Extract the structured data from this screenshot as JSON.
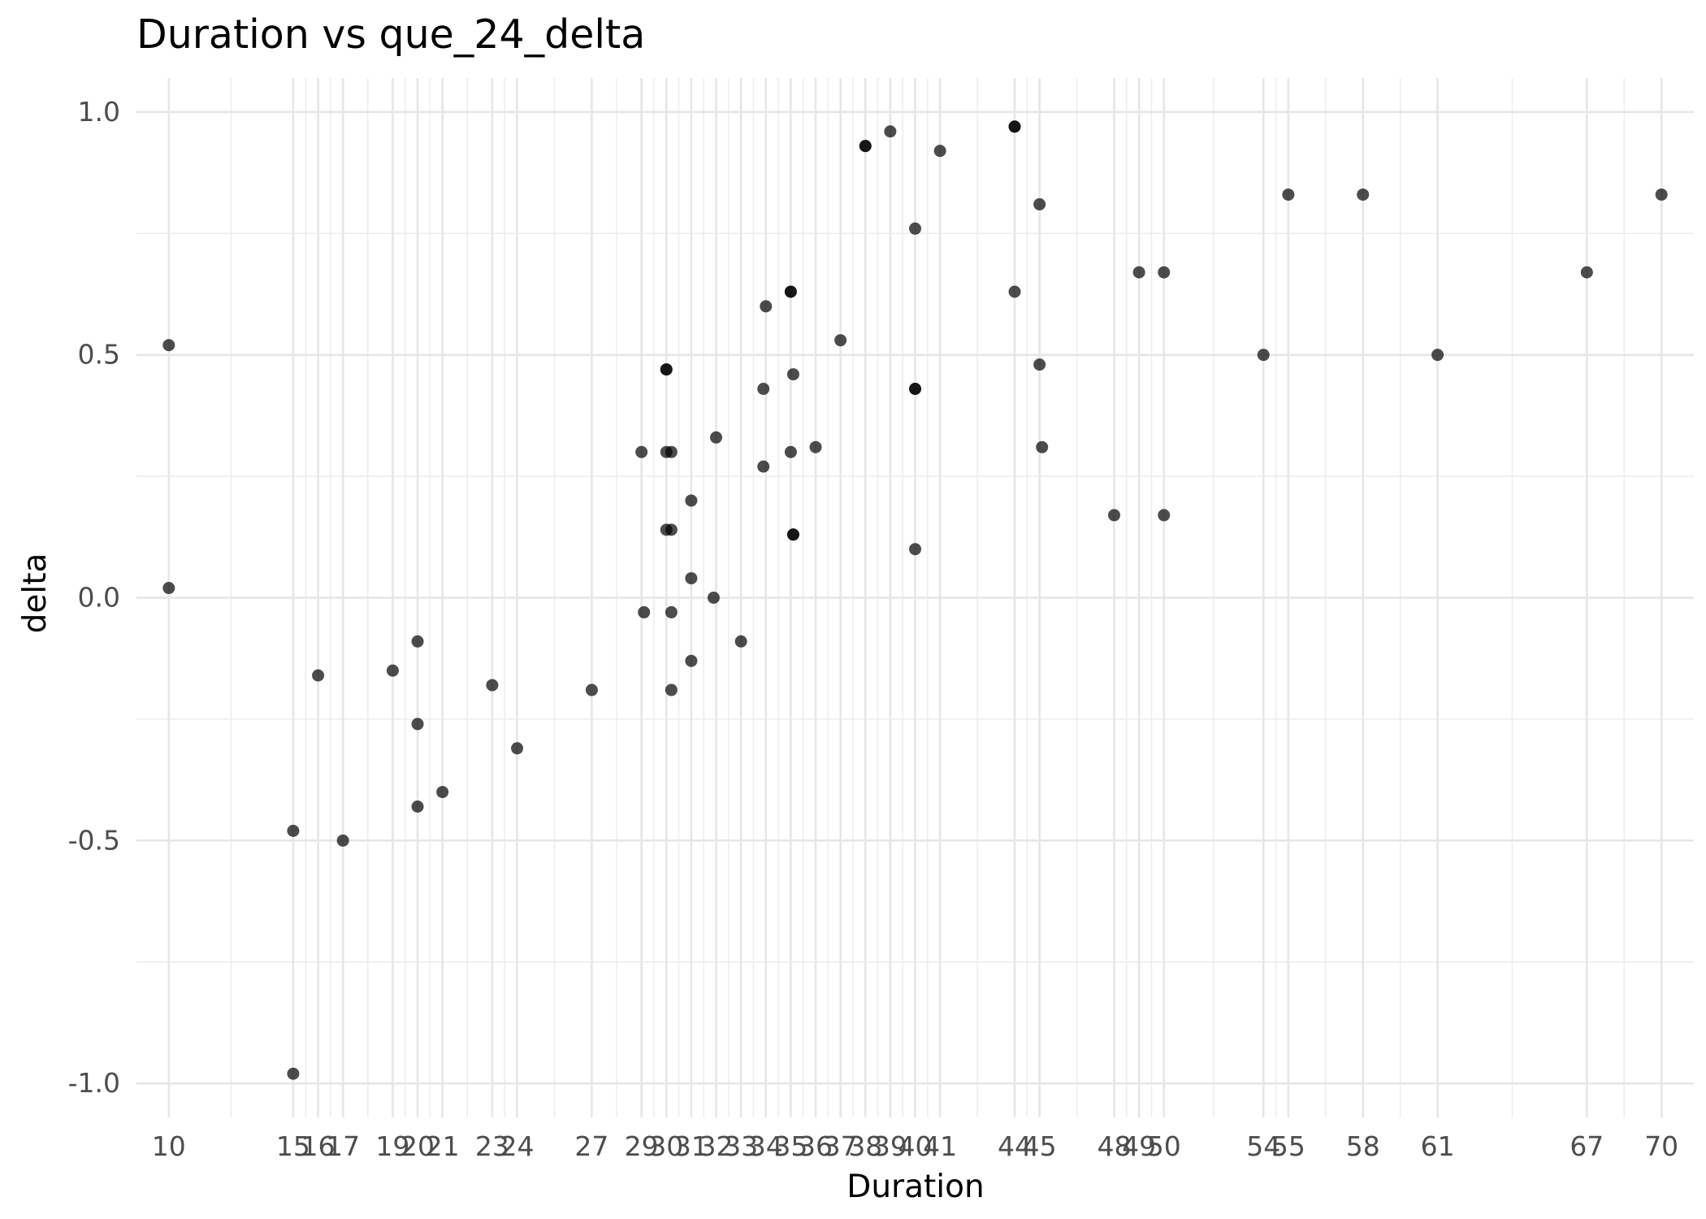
{
  "chart_data": {
    "type": "scatter",
    "title": "Duration vs que_24_delta",
    "xlabel": "Duration",
    "ylabel": "delta",
    "xlim": [
      8.7,
      71.3
    ],
    "ylim": [
      -1.07,
      1.07
    ],
    "x_ticks": [
      10,
      15,
      16,
      17,
      19,
      20,
      21,
      23,
      24,
      27,
      29,
      30,
      31,
      32,
      33,
      34,
      35,
      36,
      37,
      38,
      39,
      40,
      41,
      44,
      45,
      48,
      49,
      50,
      54,
      55,
      58,
      61,
      67,
      70
    ],
    "x_tick_labels": [
      "10",
      "15",
      "16",
      "17",
      "19",
      "20",
      "21",
      "23",
      "24",
      "27",
      "29",
      "30",
      "31",
      "32",
      "33",
      "34",
      "35",
      "36",
      "37",
      "38",
      "39",
      "40",
      "41",
      "44",
      "45",
      "48",
      "49",
      "50",
      "54",
      "55",
      "58",
      "61",
      "67",
      "70"
    ],
    "y_ticks": [
      -1.0,
      -0.5,
      0.0,
      0.5,
      1.0
    ],
    "y_tick_labels": [
      "-1.0",
      "-0.5",
      "0.0",
      "0.5",
      "1.0"
    ],
    "grid": true,
    "marker_color": "#000000",
    "marker_opacity": 0.7,
    "points": [
      [
        10.0,
        0.52
      ],
      [
        10.0,
        0.02
      ],
      [
        15.0,
        -0.48
      ],
      [
        15.0,
        -0.98
      ],
      [
        16.0,
        -0.16
      ],
      [
        17.0,
        -0.5
      ],
      [
        19.0,
        -0.15
      ],
      [
        20.0,
        -0.09
      ],
      [
        20.0,
        -0.26
      ],
      [
        20.0,
        -0.43
      ],
      [
        21.0,
        -0.4
      ],
      [
        23.0,
        -0.18
      ],
      [
        24.0,
        -0.31
      ],
      [
        27.0,
        -0.19
      ],
      [
        29.0,
        0.3
      ],
      [
        29.1,
        -0.03
      ],
      [
        30.0,
        0.47
      ],
      [
        30.0,
        0.47
      ],
      [
        30.0,
        0.3
      ],
      [
        30.2,
        0.3
      ],
      [
        30.0,
        0.14
      ],
      [
        30.2,
        0.14
      ],
      [
        30.2,
        -0.03
      ],
      [
        30.2,
        -0.19
      ],
      [
        31.0,
        0.2
      ],
      [
        31.0,
        0.04
      ],
      [
        31.0,
        -0.13
      ],
      [
        32.0,
        0.33
      ],
      [
        31.9,
        0.0
      ],
      [
        33.0,
        -0.09
      ],
      [
        34.0,
        0.6
      ],
      [
        33.9,
        0.43
      ],
      [
        33.9,
        0.27
      ],
      [
        35.0,
        0.63
      ],
      [
        35.0,
        0.63
      ],
      [
        35.1,
        0.46
      ],
      [
        35.0,
        0.3
      ],
      [
        35.1,
        0.13
      ],
      [
        35.1,
        0.13
      ],
      [
        36.0,
        0.31
      ],
      [
        37.0,
        0.53
      ],
      [
        38.0,
        0.93
      ],
      [
        38.0,
        0.93
      ],
      [
        39.0,
        0.96
      ],
      [
        40.0,
        0.76
      ],
      [
        40.0,
        0.43
      ],
      [
        40.0,
        0.43
      ],
      [
        40.0,
        0.1
      ],
      [
        41.0,
        0.92
      ],
      [
        44.0,
        0.97
      ],
      [
        44.0,
        0.97
      ],
      [
        44.0,
        0.63
      ],
      [
        45.0,
        0.81
      ],
      [
        45.0,
        0.48
      ],
      [
        45.1,
        0.31
      ],
      [
        48.0,
        0.17
      ],
      [
        49.0,
        0.67
      ],
      [
        50.0,
        0.67
      ],
      [
        50.0,
        0.17
      ],
      [
        54.0,
        0.5
      ],
      [
        55.0,
        0.83
      ],
      [
        58.0,
        0.83
      ],
      [
        61.0,
        0.5
      ],
      [
        67.0,
        0.67
      ],
      [
        70.0,
        0.83
      ]
    ]
  }
}
